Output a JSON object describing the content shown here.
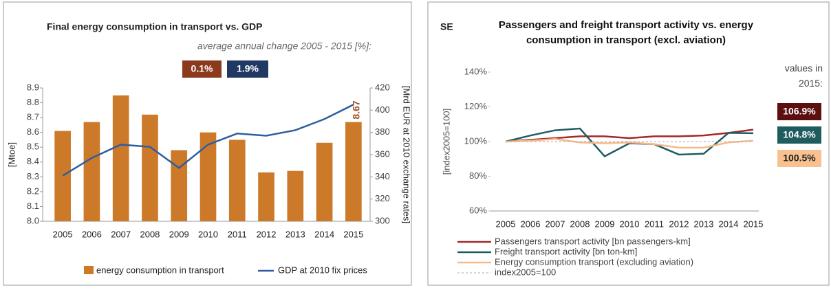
{
  "chart_data": [
    {
      "type": "bar",
      "title": "Final energy consumption in transport vs. GDP",
      "subtitle": "average annual change 2005 - 2015 [%]:",
      "annotations": [
        {
          "text": "0.1%",
          "color": "#8b3a1e"
        },
        {
          "text": "1.9%",
          "color": "#1f3864"
        }
      ],
      "ylabel": "[Mtoe]",
      "y2label": "[Mrd EUR at 2010 exchange rates]",
      "categories": [
        "2005",
        "2006",
        "2007",
        "2008",
        "2009",
        "2010",
        "2011",
        "2012",
        "2013",
        "2014",
        "2015"
      ],
      "series": [
        {
          "name": "energy consumption in transport",
          "type": "bar",
          "color": "#cc7a2a",
          "values": [
            8.61,
            8.67,
            8.85,
            8.72,
            8.48,
            8.6,
            8.55,
            8.33,
            8.34,
            8.53,
            8.67
          ]
        },
        {
          "name": "GDP at 2010 fix prices",
          "type": "line",
          "axis": "y2",
          "color": "#2e5d9f",
          "values": [
            341,
            357,
            369,
            367,
            348,
            369,
            379,
            377,
            382,
            392,
            405
          ]
        }
      ],
      "ylim": [
        8.0,
        8.9
      ],
      "yticks": [
        {
          "value": 8,
          "label": "8.0"
        },
        8.1,
        8.2,
        8.3,
        8.4,
        8.5,
        8.6,
        8.7,
        8.8,
        8.9
      ],
      "y2lim": [
        300,
        420
      ],
      "y2ticks": [
        300,
        320,
        340,
        360,
        380,
        400,
        420
      ],
      "legend": "bottom"
    },
    {
      "type": "line",
      "label": "SE",
      "title": "Passengers and freight transport activity vs. energy consumption in transport (excl. aviation)",
      "annotation": "values in 2015:",
      "ylabel": "[index2005=100]",
      "categories": [
        "2005",
        "2006",
        "2007",
        "2008",
        "2009",
        "2010",
        "2011",
        "2012",
        "2013",
        "2014",
        "2015"
      ],
      "series": [
        {
          "name": "Passengers transport activity [bn passengers-km]",
          "color": "#a3282b",
          "values": [
            100,
            101,
            102,
            103,
            103,
            102,
            103,
            103,
            103.5,
            105,
            106.9
          ],
          "value_labels": [
            null,
            null,
            null,
            null,
            null,
            null,
            null,
            null,
            null,
            null,
            "106.9%"
          ],
          "label_color": "#5c0f0f"
        },
        {
          "name": "Freight transport activity [bn ton-km]",
          "color": "#1f5c60",
          "values": [
            100,
            103.5,
            106.5,
            107.5,
            91.5,
            99,
            98.5,
            92.5,
            93,
            105,
            104.8
          ],
          "value_labels": [
            null,
            null,
            null,
            null,
            null,
            null,
            null,
            null,
            null,
            null,
            "104.8%"
          ],
          "label_color": "#1f5c60"
        },
        {
          "name": "Energy consumption transport (excluding aviation)",
          "color": "#f6b987",
          "values": [
            100,
            100.5,
            101.5,
            99.5,
            99,
            99.5,
            98.5,
            96.5,
            96.5,
            99.5,
            100.5
          ],
          "value_labels": [
            null,
            null,
            null,
            null,
            null,
            null,
            null,
            null,
            null,
            null,
            "100.5%"
          ],
          "label_color": "#f8c18f"
        },
        {
          "name": "index2005=100",
          "color": "#aaaaaa",
          "dash": true,
          "values": [
            100,
            100,
            100,
            100,
            100,
            100,
            100,
            100,
            100,
            100,
            100
          ]
        }
      ],
      "ylim": [
        60,
        140
      ],
      "yticks": [
        {
          "value": 60,
          "label": "60%"
        },
        {
          "value": 80,
          "label": "80%"
        },
        {
          "value": 100,
          "label": "100%"
        },
        {
          "value": 120,
          "label": "120%"
        },
        {
          "value": 140,
          "label": "140%"
        }
      ],
      "legend": "bottom-left"
    }
  ]
}
